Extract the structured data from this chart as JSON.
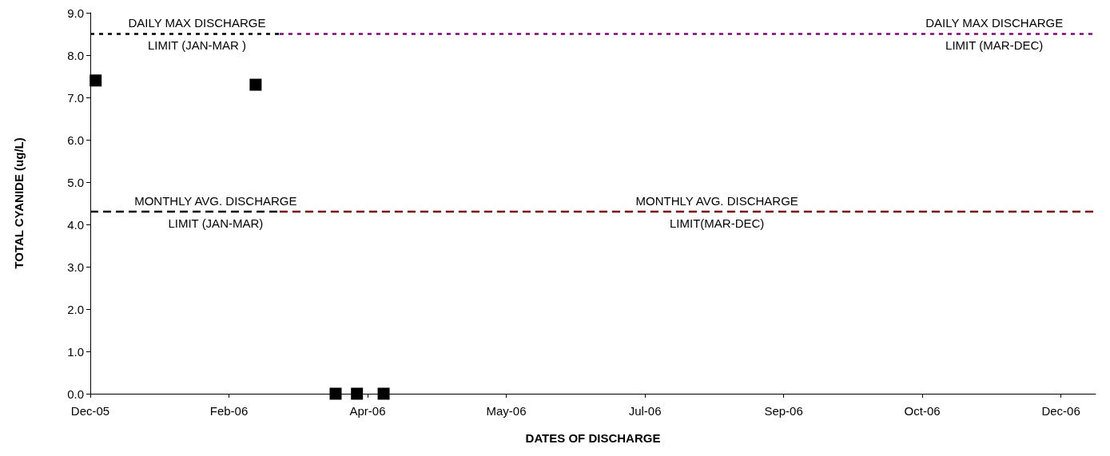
{
  "chart_data": {
    "type": "scatter",
    "xlabel": "DATES OF DISCHARGE",
    "ylabel": "TOTAL CYANIDE (ug/L)",
    "xlim": [
      "2005-12-20",
      "2007-01-01"
    ],
    "xticks": [
      {
        "value": "2005-12-20",
        "label": "Dec-05"
      },
      {
        "value": "2006-02-10",
        "label": "Feb-06"
      },
      {
        "value": "2006-04-03",
        "label": "Apr-06"
      },
      {
        "value": "2006-05-25",
        "label": "May-06"
      },
      {
        "value": "2006-07-16",
        "label": "Jul-06"
      },
      {
        "value": "2006-09-06",
        "label": "Sep-06"
      },
      {
        "value": "2006-10-28",
        "label": "Oct-06"
      },
      {
        "value": "2006-12-19",
        "label": "Dec-06"
      }
    ],
    "ylim": [
      0,
      9
    ],
    "yticks": [
      {
        "value": 0,
        "label": "0.0"
      },
      {
        "value": 1,
        "label": "1.0"
      },
      {
        "value": 2,
        "label": "2.0"
      },
      {
        "value": 3,
        "label": "3.0"
      },
      {
        "value": 4,
        "label": "4.0"
      },
      {
        "value": 5,
        "label": "5.0"
      },
      {
        "value": 6,
        "label": "6.0"
      },
      {
        "value": 7,
        "label": "7.0"
      },
      {
        "value": 8,
        "label": "8.0"
      },
      {
        "value": 9,
        "label": "9.0"
      }
    ],
    "grid": false,
    "marker": "square",
    "series": [
      {
        "color": "#000000",
        "x": [
          "2005-12-22",
          "2006-02-20",
          "2006-03-22",
          "2006-03-30",
          "2006-04-09"
        ],
        "values": [
          7.4,
          7.3,
          0,
          0,
          0
        ]
      },
      {
        "type": "line",
        "color": "#000000",
        "line_style": "dotted",
        "marker": "none",
        "x": [
          "2005-12-20",
          "2006-03-01"
        ],
        "values": [
          8.5,
          8.5
        ]
      },
      {
        "type": "line",
        "color": "#800080",
        "line_style": "dotted",
        "marker": "none",
        "x": [
          "2006-03-01",
          "2007-01-01"
        ],
        "values": [
          8.5,
          8.5
        ]
      },
      {
        "type": "line",
        "color": "#000000",
        "line_style": "dashed",
        "marker": "none",
        "x": [
          "2005-12-20",
          "2006-03-01"
        ],
        "values": [
          4.3,
          4.3
        ]
      },
      {
        "type": "line",
        "color": "#800000",
        "line_style": "dashed",
        "marker": "none",
        "x": [
          "2006-03-01",
          "2007-01-01"
        ],
        "values": [
          4.3,
          4.3
        ]
      }
    ],
    "annotations": [
      {
        "text": "DAILY MAX DISCHARGE\nLIMIT (JAN-MAR )",
        "x": "2006-01-29",
        "y": 8.5
      },
      {
        "text": "DAILY MAX DISCHARGE\nLIMIT (MAR-DEC)",
        "x": "2006-11-24",
        "y": 8.5
      },
      {
        "text": "MONTHLY AVG. DISCHARGE\nLIMIT (JAN-MAR)",
        "x": "2006-02-05",
        "y": 4.3
      },
      {
        "text": "MONTHLY AVG. DISCHARGE\nLIMIT(MAR-DEC)",
        "x": "2006-08-12",
        "y": 4.3
      }
    ]
  }
}
